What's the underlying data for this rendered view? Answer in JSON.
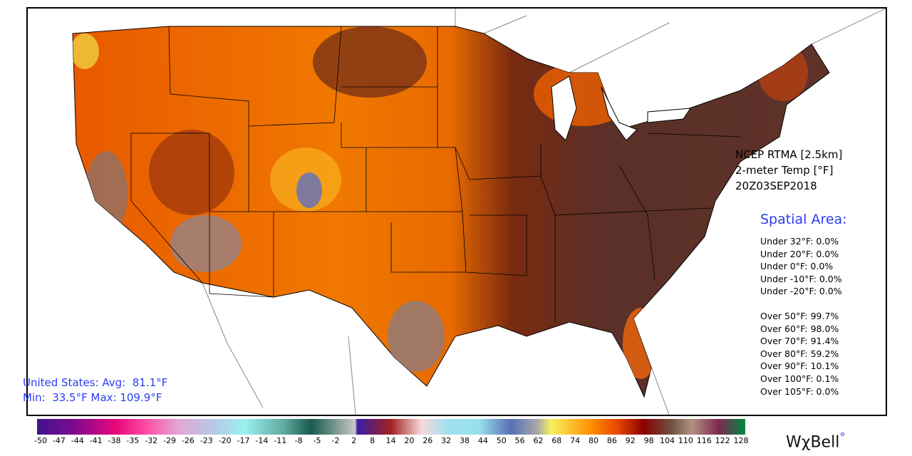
{
  "info": {
    "line1": "NCEP RTMA [2.5km]",
    "line2": "2-meter Temp [°F]",
    "line3": "20Z03SEP2018"
  },
  "spatial": {
    "title": "Spatial Area:",
    "under": [
      "Under 32°F: 0.0%",
      "Under 20°F: 0.0%",
      "Under 0°F: 0.0%",
      "Under -10°F: 0.0%",
      "Under -20°F: 0.0%"
    ],
    "over": [
      "Over 50°F: 99.7%",
      "Over 60°F: 98.0%",
      "Over 70°F: 91.4%",
      "Over 80°F: 59.2%",
      "Over 90°F: 10.1%",
      "Over 100°F: 0.1%",
      "Over 105°F: 0.0%"
    ]
  },
  "summary": {
    "avg": "United States: Avg:  81.1°F",
    "minmax": "Min:  33.5°F Max: 109.9°F"
  },
  "colorbar": {
    "ticks": [
      "-50",
      "-47",
      "-44",
      "-41",
      "-38",
      "-35",
      "-32",
      "-29",
      "-26",
      "-23",
      "-20",
      "-17",
      "-14",
      "-11",
      "-8",
      "-5",
      "-2",
      "2",
      "8",
      "14",
      "20",
      "26",
      "32",
      "38",
      "44",
      "50",
      "56",
      "62",
      "68",
      "74",
      "80",
      "86",
      "92",
      "98",
      "104",
      "110",
      "116",
      "122",
      "128"
    ]
  },
  "logo": {
    "text": "WχBell",
    "mark": "°"
  },
  "colors": {
    "accent": "#2a3cf0",
    "hot": "#f06a00",
    "dark": "#5a2e28"
  }
}
